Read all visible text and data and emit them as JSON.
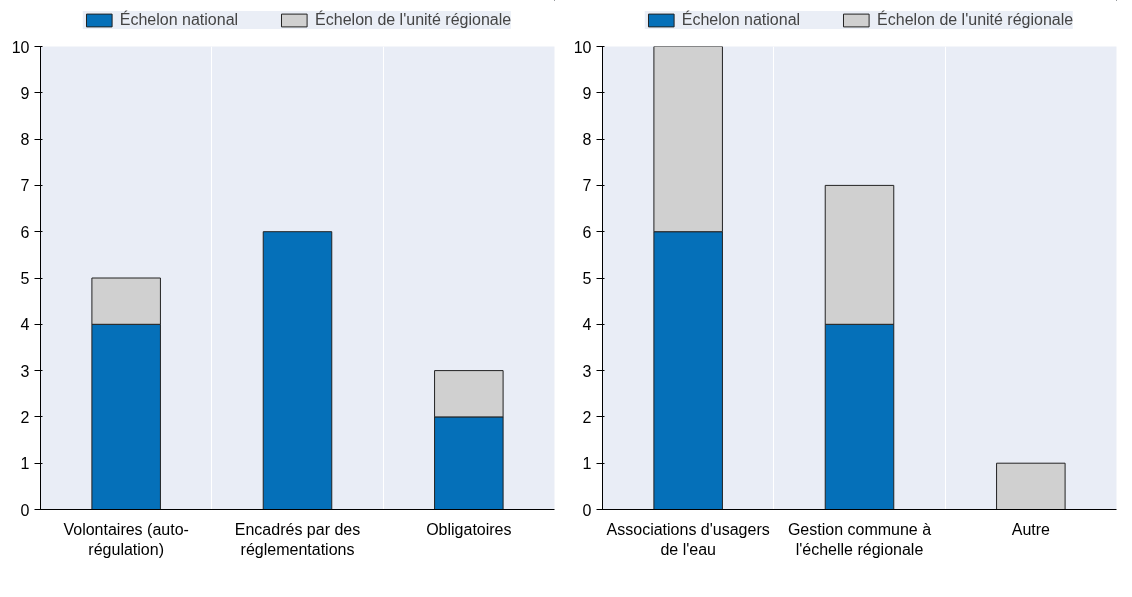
{
  "chart_data": [
    {
      "type": "bar",
      "stacked": true,
      "categories": [
        "Volontaires (auto-régulation)",
        "Encadrés par des réglementations",
        "Obligatoires"
      ],
      "series": [
        {
          "name": "Échelon national",
          "color": "#0570b9",
          "values": [
            4,
            6,
            2
          ]
        },
        {
          "name": "Échelon de l'unité régionale",
          "color": "#d0d0d0",
          "values": [
            1,
            0,
            1
          ]
        }
      ],
      "ylim": [
        0,
        10
      ],
      "yticks": [
        0,
        1,
        2,
        3,
        4,
        5,
        6,
        7,
        8,
        9,
        10
      ],
      "grid": "x",
      "legend": "top"
    },
    {
      "type": "bar",
      "stacked": true,
      "categories": [
        "Associations d'usagers de l'eau",
        "Gestion commune à l'échelle régionale",
        "Autre"
      ],
      "series": [
        {
          "name": "Échelon national",
          "color": "#0570b9",
          "values": [
            6,
            4,
            0
          ]
        },
        {
          "name": "Échelon de l'unité régionale",
          "color": "#d0d0d0",
          "values": [
            4,
            3,
            1
          ]
        }
      ],
      "ylim": [
        0,
        10
      ],
      "yticks": [
        0,
        1,
        2,
        3,
        4,
        5,
        6,
        7,
        8,
        9,
        10
      ],
      "grid": "x",
      "legend": "top"
    }
  ]
}
